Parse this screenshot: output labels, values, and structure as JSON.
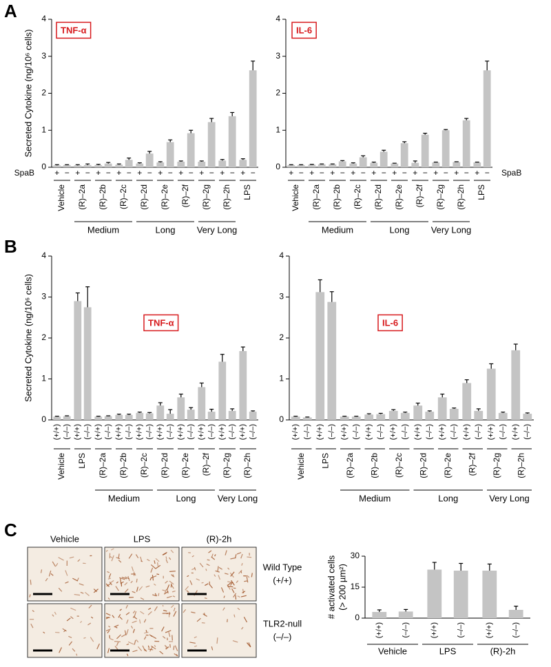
{
  "chart_data": [
    {
      "panel": "A",
      "type": "bar",
      "title": "TNF-α",
      "ylabel": "Secreted Cytokine (ng/10⁶ cells)",
      "row_label": "SpaB",
      "categories": [
        "Vehicle",
        "(R)–2a",
        "(R)–2b",
        "(R)–2c",
        "(R)–2d",
        "(R)–2e",
        "(R)–2f",
        "(R)–2g",
        "(R)–2h",
        "LPS"
      ],
      "series": [
        {
          "name": "+",
          "color": "#c4c4c4",
          "values": [
            0.05,
            0.05,
            0.06,
            0.07,
            0.1,
            0.13,
            0.15,
            0.15,
            0.18,
            0.2
          ],
          "errors": [
            0.02,
            0.02,
            0.02,
            0.02,
            0.02,
            0.02,
            0.02,
            0.02,
            0.03,
            0.03
          ]
        },
        {
          "name": "−",
          "color": "#c4c4c4",
          "values": [
            0.06,
            0.06,
            0.1,
            0.2,
            0.37,
            0.68,
            0.92,
            1.22,
            1.38,
            2.62
          ],
          "errors": [
            0.01,
            0.03,
            0.03,
            0.05,
            0.06,
            0.06,
            0.08,
            0.1,
            0.1,
            0.25
          ]
        }
      ],
      "groups": [
        {
          "label": "Medium",
          "categories": [
            "(R)–2a",
            "(R)–2c"
          ]
        },
        {
          "label": "Long",
          "categories": [
            "(R)–2d",
            "(R)–2f"
          ]
        },
        {
          "label": "Very Long",
          "categories": [
            "(R)–2g",
            "(R)–2h"
          ]
        }
      ],
      "ylim": [
        0,
        4
      ],
      "yticks": [
        0,
        1,
        2,
        3,
        4
      ]
    },
    {
      "type": "bar",
      "title": "IL-6",
      "row_label": "SpaB",
      "categories": [
        "Vehicle",
        "(R)–2a",
        "(R)–2b",
        "(R)–2c",
        "(R)–2d",
        "(R)–2e",
        "(R)–2f",
        "(R)–2g",
        "(R)–2h",
        "LPS"
      ],
      "series": [
        {
          "name": "+",
          "color": "#c4c4c4",
          "values": [
            0.06,
            0.07,
            0.08,
            0.1,
            0.12,
            0.1,
            0.12,
            0.13,
            0.14,
            0.13
          ],
          "errors": [
            0.01,
            0.01,
            0.01,
            0.02,
            0.02,
            0.01,
            0.05,
            0.01,
            0.01,
            0.01
          ]
        },
        {
          "name": "−",
          "color": "#c4c4c4",
          "values": [
            0.06,
            0.08,
            0.16,
            0.27,
            0.42,
            0.65,
            0.88,
            1.0,
            1.27,
            2.62
          ],
          "errors": [
            0.01,
            0.01,
            0.02,
            0.04,
            0.04,
            0.04,
            0.04,
            0.02,
            0.05,
            0.25
          ]
        }
      ],
      "groups": [
        {
          "label": "Medium",
          "categories": [
            "(R)–2a",
            "(R)–2c"
          ]
        },
        {
          "label": "Long",
          "categories": [
            "(R)–2d",
            "(R)–2f"
          ]
        },
        {
          "label": "Very Long",
          "categories": [
            "(R)–2g",
            "(R)–2h"
          ]
        }
      ],
      "ylim": [
        0,
        4
      ],
      "yticks": [
        0,
        1,
        2,
        3,
        4
      ]
    },
    {
      "panel": "B",
      "type": "bar",
      "title": "TNF-α",
      "ylabel": "Secreted Cytokine (ng/10⁶ cells)",
      "categories": [
        "Vehicle",
        "LPS",
        "(R)–2a",
        "(R)–2b",
        "(R)–2c",
        "(R)–2d",
        "(R)–2e",
        "(R)–2f",
        "(R)–2g",
        "(R)–2h"
      ],
      "series": [
        {
          "name": "(+/+)",
          "color": "#c4c4c4",
          "values": [
            0.08,
            2.9,
            0.08,
            0.12,
            0.17,
            0.35,
            0.55,
            0.8,
            1.42,
            1.68
          ],
          "errors": [
            0.01,
            0.2,
            0.01,
            0.02,
            0.02,
            0.07,
            0.08,
            0.1,
            0.18,
            0.1
          ]
        },
        {
          "name": "(–/–)",
          "color": "#c4c4c4",
          "values": [
            0.09,
            2.75,
            0.09,
            0.12,
            0.16,
            0.15,
            0.25,
            0.2,
            0.22,
            0.2
          ],
          "errors": [
            0.01,
            0.5,
            0.01,
            0.02,
            0.02,
            0.1,
            0.05,
            0.06,
            0.05,
            0.02
          ]
        }
      ],
      "groups": [
        {
          "label": "Medium",
          "categories": [
            "(R)–2a",
            "(R)–2c"
          ]
        },
        {
          "label": "Long",
          "categories": [
            "(R)–2d",
            "(R)–2f"
          ]
        },
        {
          "label": "Very Long",
          "categories": [
            "(R)–2g",
            "(R)–2h"
          ]
        }
      ],
      "ylim": [
        0,
        4
      ],
      "yticks": [
        0,
        1,
        2,
        3,
        4
      ]
    },
    {
      "type": "bar",
      "title": "IL-6",
      "categories": [
        "Vehicle",
        "LPS",
        "(R)–2a",
        "(R)–2b",
        "(R)–2c",
        "(R)–2d",
        "(R)–2e",
        "(R)–2f",
        "(R)–2g",
        "(R)–2h"
      ],
      "series": [
        {
          "name": "(+/+)",
          "color": "#c4c4c4",
          "values": [
            0.08,
            3.12,
            0.08,
            0.13,
            0.22,
            0.35,
            0.55,
            0.9,
            1.25,
            1.7
          ],
          "errors": [
            0.01,
            0.3,
            0.01,
            0.02,
            0.03,
            0.06,
            0.08,
            0.08,
            0.12,
            0.15
          ]
        },
        {
          "name": "(–/–)",
          "color": "#c4c4c4",
          "values": [
            0.06,
            2.88,
            0.08,
            0.14,
            0.17,
            0.2,
            0.27,
            0.22,
            0.17,
            0.15
          ],
          "errors": [
            0.01,
            0.25,
            0.01,
            0.02,
            0.02,
            0.02,
            0.02,
            0.05,
            0.02,
            0.02
          ]
        }
      ],
      "groups": [
        {
          "label": "Medium",
          "categories": [
            "(R)–2a",
            "(R)–2c"
          ]
        },
        {
          "label": "Long",
          "categories": [
            "(R)–2d",
            "(R)–2f"
          ]
        },
        {
          "label": "Very Long",
          "categories": [
            "(R)–2g",
            "(R)–2h"
          ]
        }
      ],
      "ylim": [
        0,
        4
      ],
      "yticks": [
        0,
        1,
        2,
        3,
        4
      ]
    },
    {
      "panel": "C",
      "type": "bar",
      "ylabel": [
        "# activated cells",
        "(> 200 µm²)"
      ],
      "categories": [
        "Vehicle",
        "LPS",
        "(R)-2h"
      ],
      "series": [
        {
          "name": "(+/+)",
          "color": "#c4c4c4",
          "values": [
            3,
            23.5,
            23
          ],
          "errors": [
            1,
            3.5,
            3.2
          ]
        },
        {
          "name": "(–/–)",
          "color": "#c4c4c4",
          "values": [
            3.2,
            23,
            4
          ],
          "errors": [
            1,
            3.5,
            1.8
          ]
        }
      ],
      "ylim": [
        0,
        30
      ],
      "yticks": [
        0,
        15,
        30
      ]
    }
  ],
  "micrographs": {
    "columns": [
      "Vehicle",
      "LPS",
      "(R)-2h"
    ],
    "rows": [
      [
        "Wild Type",
        "(+/+)"
      ],
      [
        "TLR2-null",
        "(–/–)"
      ]
    ]
  }
}
